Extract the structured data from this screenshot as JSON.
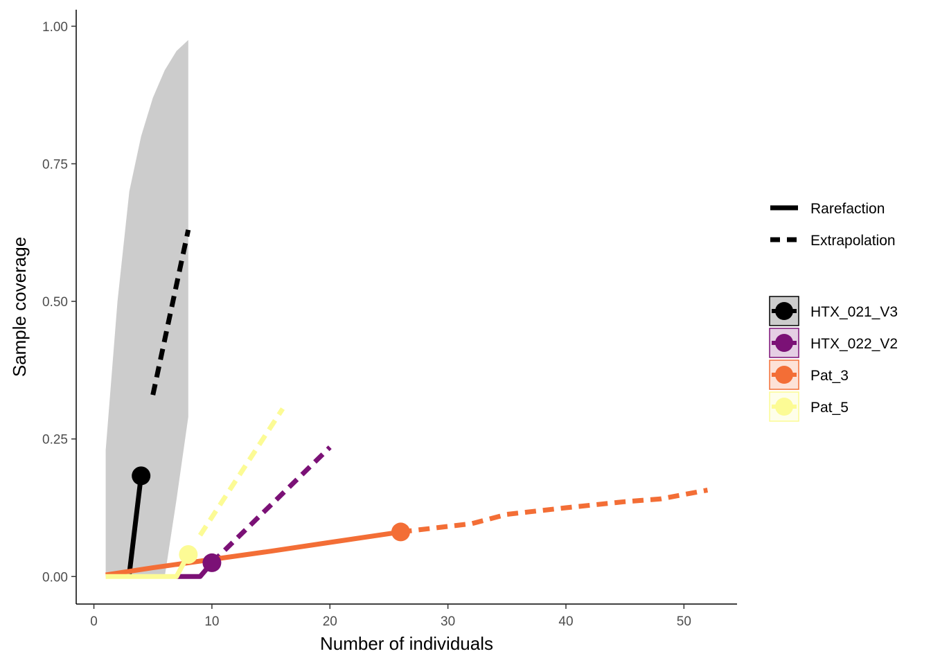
{
  "chart_data": {
    "type": "line",
    "xlabel": "Number of individuals",
    "ylabel": "Sample coverage",
    "xlim": [
      -1.5,
      54.5
    ],
    "ylim": [
      -0.05,
      1.03
    ],
    "x_ticks": [
      0,
      10,
      20,
      30,
      40,
      50
    ],
    "x_tick_labels": [
      "0",
      "10",
      "20",
      "30",
      "40",
      "50"
    ],
    "y_ticks": [
      0,
      0.25,
      0.5,
      0.75,
      1.0
    ],
    "y_tick_labels": [
      "0.00",
      "0.25",
      "0.50",
      "0.75",
      "1.00"
    ],
    "grid": false,
    "legend_position": "right",
    "method_legend": [
      {
        "label": "Rarefaction",
        "style": "solid"
      },
      {
        "label": "Extrapolation",
        "style": "dashed"
      }
    ],
    "series": [
      {
        "name": "HTX_021_V3",
        "color": "#000000",
        "band_color": "#cccccc",
        "observed": {
          "x": 4,
          "y": 0.183
        },
        "rarefaction": {
          "x": [
            3,
            4
          ],
          "y": [
            0.005,
            0.183
          ]
        },
        "extrapolation": {
          "x": [
            5,
            8
          ],
          "y": [
            0.33,
            0.63
          ]
        },
        "band": {
          "x": [
            1,
            2,
            3,
            4,
            5,
            6,
            7,
            8
          ],
          "lower": [
            0.0,
            0.0,
            0.0,
            0.0,
            0.0,
            0.0,
            0.14,
            0.29
          ],
          "upper": [
            0.23,
            0.5,
            0.7,
            0.8,
            0.87,
            0.92,
            0.955,
            0.975
          ]
        }
      },
      {
        "name": "HTX_022_V2",
        "color": "#7b1176",
        "observed": {
          "x": 10,
          "y": 0.025
        },
        "rarefaction": {
          "x": [
            7,
            9,
            10
          ],
          "y": [
            0.0,
            0.0,
            0.025
          ]
        },
        "extrapolation": {
          "x": [
            10,
            20
          ],
          "y": [
            0.025,
            0.235
          ]
        }
      },
      {
        "name": "Pat_3",
        "color": "#f36e36",
        "observed": {
          "x": 26,
          "y": 0.081
        },
        "rarefaction": {
          "x": [
            1,
            5,
            10,
            15,
            20,
            26
          ],
          "y": [
            0.003,
            0.016,
            0.031,
            0.046,
            0.062,
            0.081
          ]
        },
        "extrapolation": {
          "x": [
            26,
            32,
            35,
            40,
            45,
            48,
            52
          ],
          "y": [
            0.081,
            0.096,
            0.113,
            0.125,
            0.136,
            0.141,
            0.157
          ]
        }
      },
      {
        "name": "Pat_5",
        "color": "#fcfb95",
        "observed": {
          "x": 8,
          "y": 0.04
        },
        "rarefaction": {
          "x": [
            1,
            7,
            8
          ],
          "y": [
            0.0,
            0.0,
            0.04
          ]
        },
        "extrapolation": {
          "x": [
            9,
            16
          ],
          "y": [
            0.075,
            0.305
          ]
        }
      }
    ]
  }
}
